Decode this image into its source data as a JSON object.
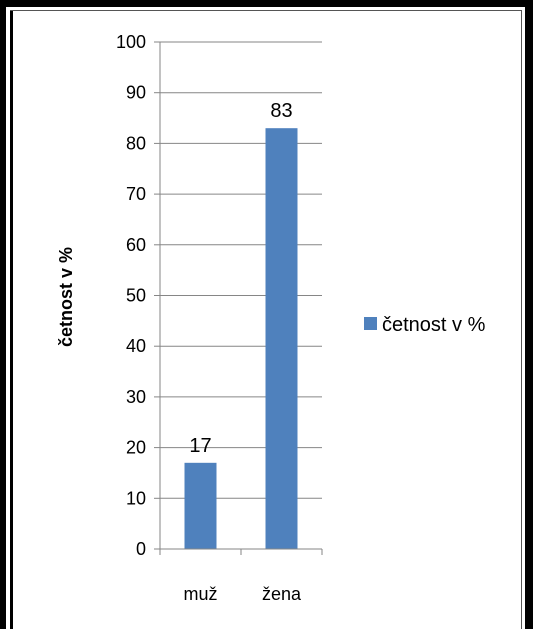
{
  "chart_data": {
    "type": "bar",
    "categories": [
      "muž",
      "žena"
    ],
    "series": [
      {
        "name": "četnost v %",
        "values": [
          17,
          83
        ]
      }
    ],
    "title": "",
    "xlabel": "",
    "ylabel": "četnost v %",
    "ylim": [
      0,
      100
    ],
    "yticks": [
      0,
      10,
      20,
      30,
      40,
      50,
      60,
      70,
      80,
      90,
      100
    ],
    "grid": true,
    "legend": "right",
    "data_labels": true,
    "colors": {
      "bar": "#4f81bd",
      "grid": "#868686",
      "axis": "#868686"
    }
  }
}
